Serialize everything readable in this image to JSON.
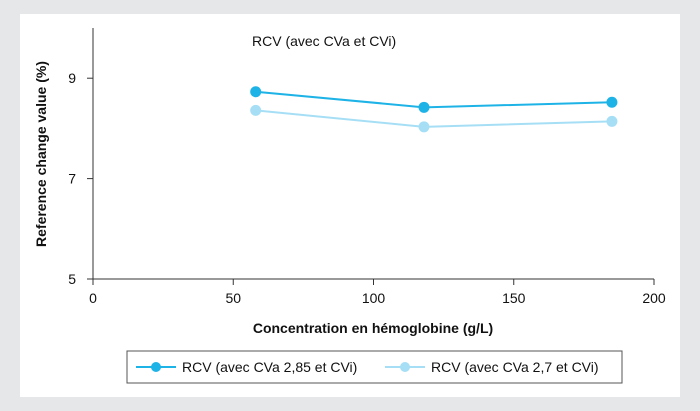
{
  "chart_data": {
    "type": "line",
    "title": "RCV (avec CVa et CVi)",
    "xlabel": "Concentration en hémoglobine (g/L)",
    "ylabel": "Reference change value (%)",
    "xlim": [
      0,
      200
    ],
    "ylim": [
      5,
      10
    ],
    "xticks": [
      "0",
      "50",
      "100",
      "150",
      "200"
    ],
    "yticks": [
      "5",
      "7",
      "9"
    ],
    "grid": false,
    "legend_position": "bottom",
    "series": [
      {
        "name": "RCV (avec CVa 2,85 et CVi)",
        "color": "#1eb3e6",
        "x": [
          58,
          118,
          185
        ],
        "y": [
          8.73,
          8.42,
          8.52
        ]
      },
      {
        "name": "RCV (avec CVa 2,7 et CVi)",
        "color": "#a6dff5",
        "x": [
          58,
          118,
          185
        ],
        "y": [
          8.36,
          8.03,
          8.14
        ]
      }
    ]
  }
}
